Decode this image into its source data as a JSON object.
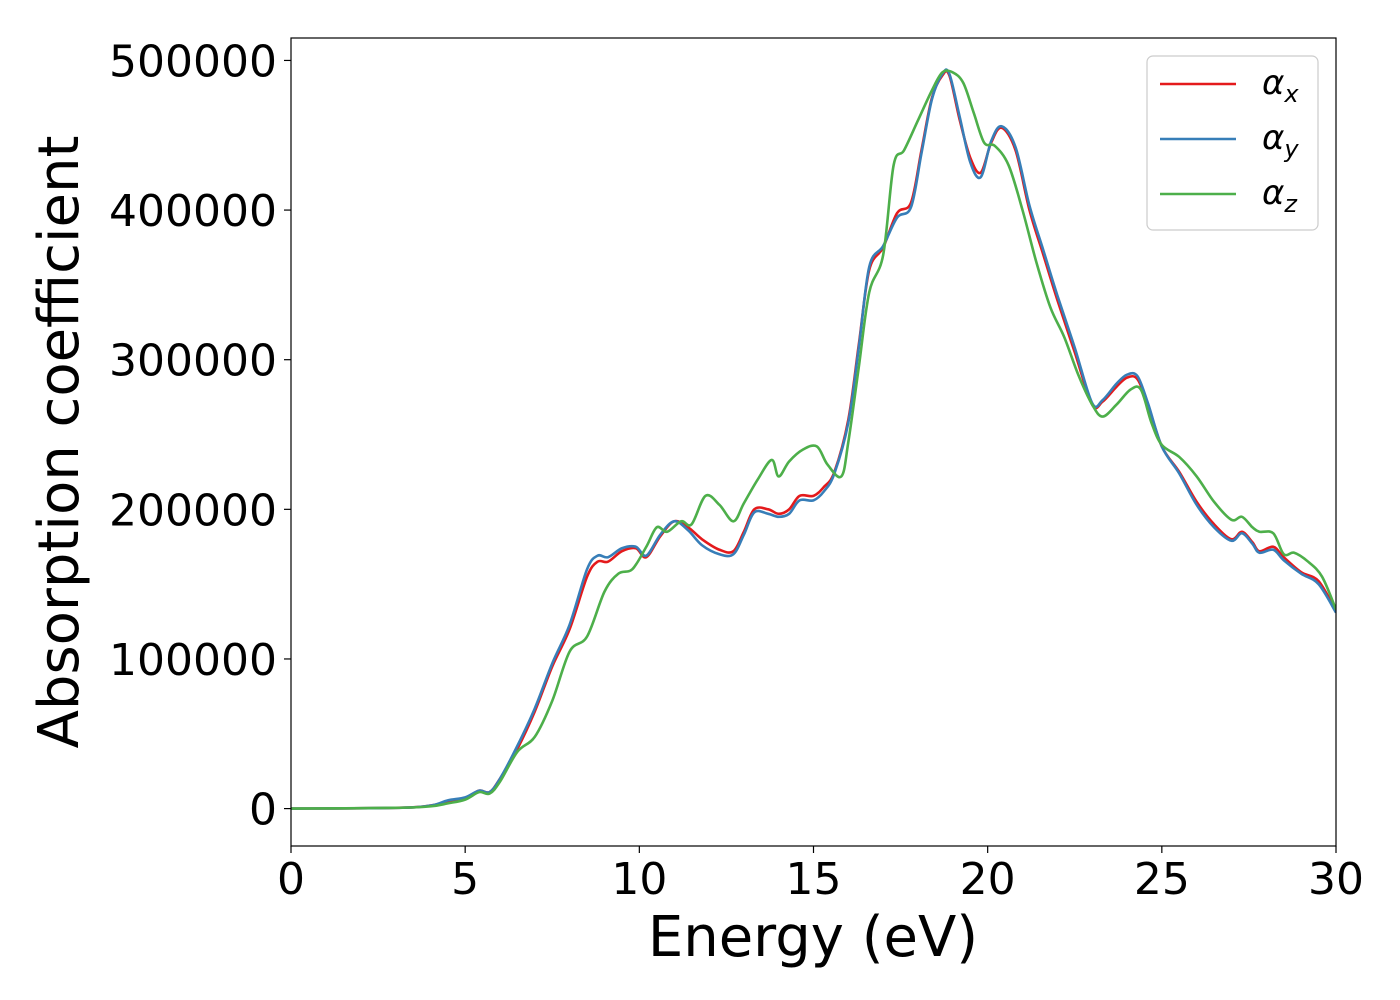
{
  "chart_data": {
    "type": "line",
    "xlabel": "Energy (eV)",
    "ylabel": "Absorption coefficient",
    "xlim": [
      0,
      30
    ],
    "ylim": [
      -25000,
      515000
    ],
    "xticks": [
      0,
      5,
      10,
      15,
      20,
      25,
      30
    ],
    "xtick_labels": [
      "0",
      "5",
      "10",
      "15",
      "20",
      "25",
      "30"
    ],
    "yticks": [
      0,
      100000,
      200000,
      300000,
      400000,
      500000
    ],
    "ytick_labels": [
      "0",
      "100000",
      "200000",
      "300000",
      "400000",
      "500000"
    ],
    "grid": false,
    "legend_position": "top-right",
    "series": [
      {
        "name": "α",
        "subscript": "x",
        "color": "#e41a1c",
        "x": [
          0,
          3,
          4,
          4.5,
          5,
          5.4,
          5.7,
          6,
          6.5,
          7,
          7.5,
          8,
          8.5,
          8.8,
          9.1,
          9.5,
          9.9,
          10.2,
          10.6,
          11,
          11.4,
          11.8,
          12.3,
          12.7,
          13,
          13.3,
          13.7,
          14,
          14.3,
          14.6,
          15,
          15.3,
          15.6,
          16,
          16.3,
          16.6,
          17,
          17.4,
          17.8,
          18.1,
          18.4,
          18.7,
          18.9,
          19.2,
          19.5,
          19.8,
          20.1,
          20.4,
          20.8,
          21.2,
          21.6,
          22,
          22.5,
          23,
          23.3,
          23.7,
          24,
          24.3,
          24.6,
          25,
          25.5,
          26,
          26.5,
          27,
          27.3,
          27.6,
          27.8,
          28.2,
          28.5,
          29,
          29.5,
          30
        ],
        "values": [
          0,
          500,
          2000,
          5000,
          7000,
          12000,
          11000,
          20000,
          40000,
          65000,
          95000,
          120000,
          155000,
          165000,
          165000,
          172000,
          174000,
          168000,
          182000,
          192000,
          188000,
          180000,
          173000,
          172000,
          185000,
          200000,
          200000,
          197000,
          200000,
          209000,
          209000,
          215000,
          225000,
          260000,
          310000,
          360000,
          375000,
          398000,
          405000,
          440000,
          475000,
          490000,
          490000,
          460000,
          435000,
          425000,
          445000,
          455000,
          440000,
          400000,
          370000,
          340000,
          305000,
          270000,
          272000,
          282000,
          288000,
          287000,
          270000,
          242000,
          225000,
          205000,
          190000,
          180000,
          185000,
          178000,
          172000,
          175000,
          168000,
          158000,
          152000,
          132000
        ]
      },
      {
        "name": "α",
        "subscript": "y",
        "color": "#377eb8",
        "x": [
          0,
          3,
          4,
          4.5,
          5,
          5.4,
          5.7,
          6,
          6.5,
          7,
          7.5,
          8,
          8.5,
          8.8,
          9.1,
          9.5,
          9.9,
          10.2,
          10.6,
          11,
          11.4,
          11.8,
          12.3,
          12.7,
          13,
          13.3,
          13.7,
          14,
          14.3,
          14.6,
          15,
          15.3,
          15.6,
          16,
          16.3,
          16.6,
          17,
          17.4,
          17.8,
          18.1,
          18.4,
          18.7,
          18.9,
          19.2,
          19.5,
          19.8,
          20.1,
          20.4,
          20.8,
          21.2,
          21.6,
          22,
          22.5,
          23,
          23.3,
          23.7,
          24,
          24.3,
          24.6,
          25,
          25.5,
          26,
          26.5,
          27,
          27.3,
          27.6,
          27.8,
          28.2,
          28.5,
          29,
          29.5,
          30
        ],
        "values": [
          0,
          500,
          2000,
          5500,
          7500,
          12000,
          11000,
          20000,
          42000,
          67000,
          97000,
          123000,
          160000,
          169000,
          168000,
          174000,
          175000,
          169000,
          183000,
          192000,
          186000,
          176000,
          170000,
          170000,
          183000,
          198000,
          197000,
          195000,
          197000,
          206000,
          206000,
          212000,
          224000,
          258000,
          308000,
          362000,
          376000,
          395000,
          402000,
          438000,
          474000,
          491000,
          491000,
          462000,
          432000,
          422000,
          446000,
          456000,
          442000,
          403000,
          373000,
          343000,
          308000,
          271000,
          273000,
          284000,
          290000,
          289000,
          271000,
          242000,
          224000,
          203000,
          188000,
          179000,
          184000,
          177000,
          171000,
          173000,
          166000,
          157000,
          150000,
          131000
        ]
      },
      {
        "name": "α",
        "subscript": "z",
        "color": "#4daf4a",
        "x": [
          0,
          3,
          4,
          4.5,
          5,
          5.4,
          5.7,
          6,
          6.5,
          7,
          7.5,
          8,
          8.5,
          9,
          9.4,
          9.8,
          10.2,
          10.5,
          10.8,
          11.2,
          11.5,
          11.9,
          12.3,
          12.7,
          13,
          13.4,
          13.8,
          14,
          14.3,
          14.7,
          15.1,
          15.4,
          15.8,
          16,
          16.3,
          16.6,
          17,
          17.3,
          17.6,
          18,
          18.4,
          18.7,
          19,
          19.3,
          19.6,
          19.9,
          20.2,
          20.6,
          21,
          21.4,
          21.8,
          22.2,
          22.6,
          23,
          23.3,
          23.7,
          24.1,
          24.4,
          24.7,
          25,
          25.5,
          26,
          26.5,
          27,
          27.3,
          27.6,
          27.8,
          28.2,
          28.5,
          28.8,
          29.2,
          29.6,
          30
        ],
        "values": [
          0,
          500,
          1500,
          3500,
          6000,
          11000,
          10000,
          18000,
          38000,
          48000,
          72000,
          105000,
          115000,
          145000,
          157000,
          160000,
          175000,
          188000,
          185000,
          192000,
          190000,
          209000,
          203000,
          192000,
          204000,
          220000,
          233000,
          222000,
          232000,
          240000,
          242000,
          230000,
          222000,
          245000,
          295000,
          345000,
          370000,
          430000,
          440000,
          460000,
          480000,
          492000,
          492000,
          485000,
          465000,
          445000,
          443000,
          430000,
          400000,
          365000,
          335000,
          315000,
          290000,
          270000,
          262000,
          270000,
          280000,
          280000,
          258000,
          243000,
          235000,
          222000,
          205000,
          193000,
          195000,
          188000,
          185000,
          184000,
          170000,
          171000,
          165000,
          155000,
          133000
        ]
      }
    ]
  }
}
